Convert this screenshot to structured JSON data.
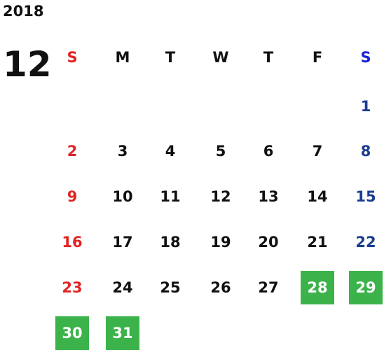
{
  "year": "2018",
  "month": "12",
  "weekdays": [
    "S",
    "M",
    "T",
    "W",
    "T",
    "F",
    "S"
  ],
  "weeks": [
    [
      null,
      null,
      null,
      null,
      null,
      null,
      {
        "day": "1"
      }
    ],
    [
      {
        "day": "2"
      },
      {
        "day": "3"
      },
      {
        "day": "4"
      },
      {
        "day": "5"
      },
      {
        "day": "6"
      },
      {
        "day": "7"
      },
      {
        "day": "8"
      }
    ],
    [
      {
        "day": "9"
      },
      {
        "day": "10"
      },
      {
        "day": "11"
      },
      {
        "day": "12"
      },
      {
        "day": "13"
      },
      {
        "day": "14"
      },
      {
        "day": "15"
      }
    ],
    [
      {
        "day": "16"
      },
      {
        "day": "17"
      },
      {
        "day": "18"
      },
      {
        "day": "19"
      },
      {
        "day": "20"
      },
      {
        "day": "21"
      },
      {
        "day": "22"
      }
    ],
    [
      {
        "day": "23"
      },
      {
        "day": "24"
      },
      {
        "day": "25"
      },
      {
        "day": "26"
      },
      {
        "day": "27"
      },
      {
        "day": "28",
        "highlighted": true
      },
      {
        "day": "29",
        "highlighted": true
      }
    ],
    [
      {
        "day": "30",
        "highlighted": true
      },
      {
        "day": "31",
        "highlighted": true
      },
      null,
      null,
      null,
      null,
      null
    ]
  ]
}
